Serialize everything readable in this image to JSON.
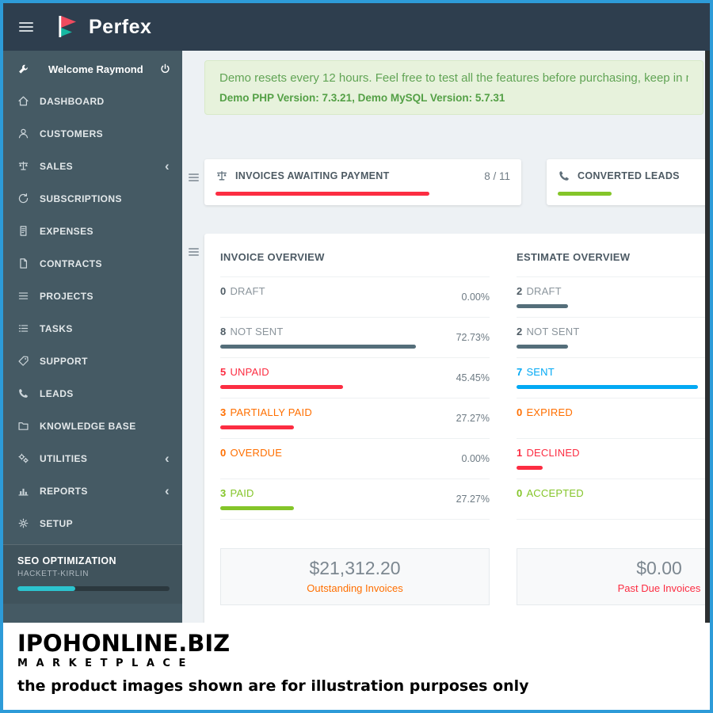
{
  "colors": {
    "frame_blue": "#2d9bd8",
    "header_navy": "#2e3e4e",
    "sidebar_slate": "#455a64",
    "accent_red": "#fc2d42",
    "accent_green": "#84c529",
    "accent_blue": "#03a9f4",
    "accent_orange": "#ff6f00",
    "bar_gray": "#546e7a",
    "seo_teal": "#2cc4cf"
  },
  "header": {
    "app_name": "Perfex"
  },
  "sidebar": {
    "welcome": "Welcome Raymond",
    "items": [
      {
        "label": "DASHBOARD",
        "icon": "home-icon"
      },
      {
        "label": "CUSTOMERS",
        "icon": "user-icon"
      },
      {
        "label": "SALES",
        "icon": "scales-icon",
        "has_submenu": true
      },
      {
        "label": "SUBSCRIPTIONS",
        "icon": "refresh-icon"
      },
      {
        "label": "EXPENSES",
        "icon": "receipt-icon"
      },
      {
        "label": "CONTRACTS",
        "icon": "file-icon"
      },
      {
        "label": "PROJECTS",
        "icon": "bars-icon"
      },
      {
        "label": "TASKS",
        "icon": "list-icon"
      },
      {
        "label": "SUPPORT",
        "icon": "ticket-icon"
      },
      {
        "label": "LEADS",
        "icon": "phone-icon"
      },
      {
        "label": "KNOWLEDGE BASE",
        "icon": "folder-icon"
      },
      {
        "label": "UTILITIES",
        "icon": "gears-icon",
        "has_submenu": true
      },
      {
        "label": "REPORTS",
        "icon": "chart-icon",
        "has_submenu": true
      },
      {
        "label": "SETUP",
        "icon": "gear-icon"
      }
    ],
    "seo": {
      "title": "SEO OPTIMIZATION",
      "subtitle": "HACKETT-KIRLIN",
      "progress_pct": 38
    }
  },
  "alert": {
    "line1": "Demo resets every 12 hours. Feel free to test all the features before purchasing, keep in m",
    "line2": "Demo PHP Version: 7.3.21, Demo MySQL Version: 5.7.31"
  },
  "widgets": [
    {
      "title": "INVOICES AWAITING PAYMENT",
      "value": "8 / 11",
      "bar_pct": 72.7,
      "bar_color": "#fc2d42",
      "icon": "scales-icon"
    },
    {
      "title": "CONVERTED LEADS",
      "bar_pct": 38,
      "bar_color": "#84c529",
      "icon": "phone-icon"
    }
  ],
  "invoice_overview": {
    "title": "INVOICE OVERVIEW",
    "rows": [
      {
        "count": "0",
        "label": "DRAFT",
        "pct": "0.00%",
        "bar_pct": 0,
        "count_color": "#4e5b64",
        "label_color": "#8b959c",
        "bar_color": "#546e7a"
      },
      {
        "count": "8",
        "label": "NOT SENT",
        "pct": "72.73%",
        "bar_pct": 72.73,
        "count_color": "#4e5b64",
        "label_color": "#8b959c",
        "bar_color": "#546e7a"
      },
      {
        "count": "5",
        "label": "UNPAID",
        "pct": "45.45%",
        "bar_pct": 45.45,
        "count_color": "#fc2d42",
        "label_color": "#fc2d42",
        "bar_color": "#fc2d42"
      },
      {
        "count": "3",
        "label": "PARTIALLY PAID",
        "pct": "27.27%",
        "bar_pct": 27.27,
        "count_color": "#ff6f00",
        "label_color": "#ff6f00",
        "bar_color": "#fc2d42"
      },
      {
        "count": "0",
        "label": "OVERDUE",
        "pct": "0.00%",
        "bar_pct": 0,
        "count_color": "#ff6f00",
        "label_color": "#ff6f00",
        "bar_color": "#ff6f00"
      },
      {
        "count": "3",
        "label": "PAID",
        "pct": "27.27%",
        "bar_pct": 27.27,
        "count_color": "#84c529",
        "label_color": "#84c529",
        "bar_color": "#84c529"
      }
    ]
  },
  "estimate_overview": {
    "title": "ESTIMATE OVERVIEW",
    "rows": [
      {
        "count": "2",
        "label": "DRAFT",
        "bar_pct": 18.18,
        "count_color": "#4e5b64",
        "label_color": "#8b959c",
        "bar_color": "#546e7a"
      },
      {
        "count": "2",
        "label": "NOT SENT",
        "bar_pct": 18.18,
        "count_color": "#4e5b64",
        "label_color": "#8b959c",
        "bar_color": "#546e7a"
      },
      {
        "count": "7",
        "label": "SENT",
        "bar_pct": 63.64,
        "count_color": "#03a9f4",
        "label_color": "#03a9f4",
        "bar_color": "#03a9f4"
      },
      {
        "count": "0",
        "label": "EXPIRED",
        "bar_pct": 0,
        "count_color": "#ff6f00",
        "label_color": "#ff6f00",
        "bar_color": "#ff6f00"
      },
      {
        "count": "1",
        "label": "DECLINED",
        "bar_pct": 9.09,
        "count_color": "#fc2d42",
        "label_color": "#fc2d42",
        "bar_color": "#fc2d42"
      },
      {
        "count": "0",
        "label": "ACCEPTED",
        "bar_pct": 0,
        "count_color": "#84c529",
        "label_color": "#84c529",
        "bar_color": "#84c529"
      }
    ]
  },
  "summary": [
    {
      "amount": "$21,312.20",
      "label": "Outstanding Invoices",
      "label_color": "#ff6f00"
    },
    {
      "amount": "$0.00",
      "label": "Past Due Invoices",
      "label_color": "#fc2d42"
    }
  ],
  "watermark": {
    "line1": "IPOHONLINE.BIZ",
    "line2": "M A R K E T P L A C E",
    "line3": "the product images shown are for illustration purposes only"
  }
}
